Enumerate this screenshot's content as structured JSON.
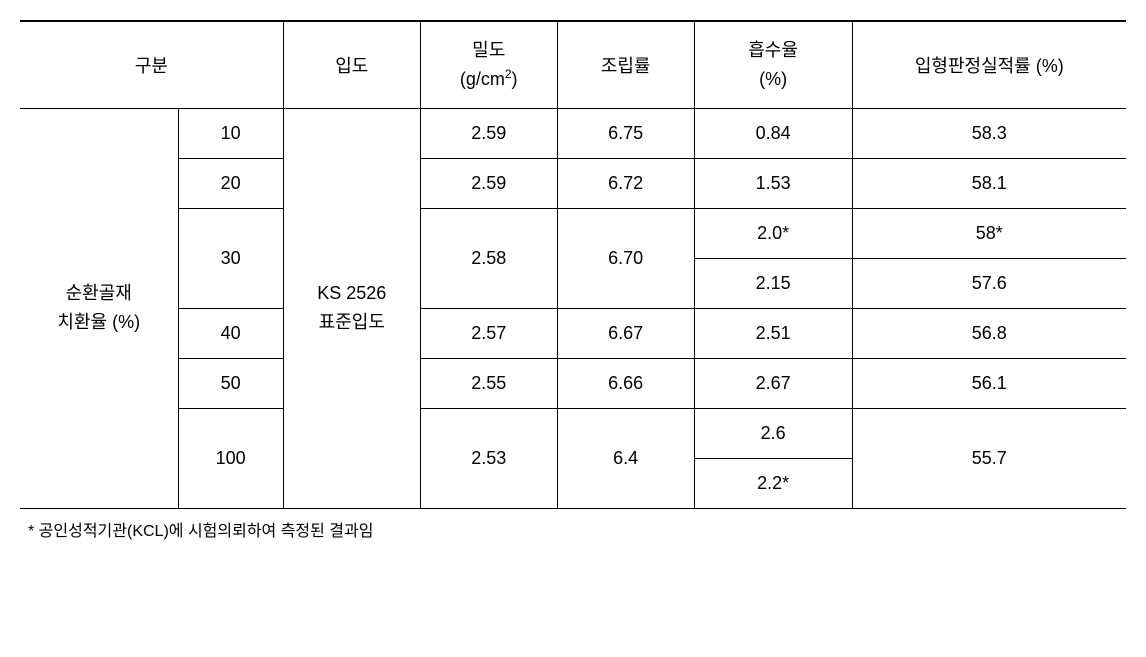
{
  "headers": {
    "gubun": "구분",
    "ipdo": "입도",
    "mildo_line1": "밀도",
    "mildo_line2_prefix": "(g/cm",
    "mildo_line2_sup": "2",
    "mildo_line2_suffix": ")",
    "jorip": "조립률",
    "heupsu_line1": "흡수율",
    "heupsu_line2": "(%)",
    "iphyeong": "입형판정실적률 (%)"
  },
  "row_label": {
    "line1": "순환골재",
    "line2": "치환율 (%)"
  },
  "ipdo_value": {
    "line1": "KS 2526",
    "line2": "표준입도"
  },
  "rows": {
    "r10": {
      "rate": "10",
      "mildo": "2.59",
      "jorip": "6.75",
      "heupsu": "0.84",
      "iphyeong": "58.3"
    },
    "r20": {
      "rate": "20",
      "mildo": "2.59",
      "jorip": "6.72",
      "heupsu": "1.53",
      "iphyeong": "58.1"
    },
    "r30": {
      "rate": "30",
      "mildo": "2.58",
      "jorip": "6.70",
      "heupsu1": "2.0*",
      "heupsu2": "2.15",
      "iphyeong1": "58*",
      "iphyeong2": "57.6"
    },
    "r40": {
      "rate": "40",
      "mildo": "2.57",
      "jorip": "6.67",
      "heupsu": "2.51",
      "iphyeong": "56.8"
    },
    "r50": {
      "rate": "50",
      "mildo": "2.55",
      "jorip": "6.66",
      "heupsu": "2.67",
      "iphyeong": "56.1"
    },
    "r100": {
      "rate": "100",
      "mildo": "2.53",
      "jorip": "6.4",
      "heupsu1": "2.6",
      "heupsu2": "2.2*",
      "iphyeong": "55.7"
    }
  },
  "footnote": "* 공인성적기관(KCL)에 시험의뢰하여 측정된 결과임",
  "styles": {
    "border_color": "#000000",
    "background_color": "#ffffff",
    "text_color": "#000000",
    "font_size_body": 18,
    "font_size_footnote": 16
  }
}
